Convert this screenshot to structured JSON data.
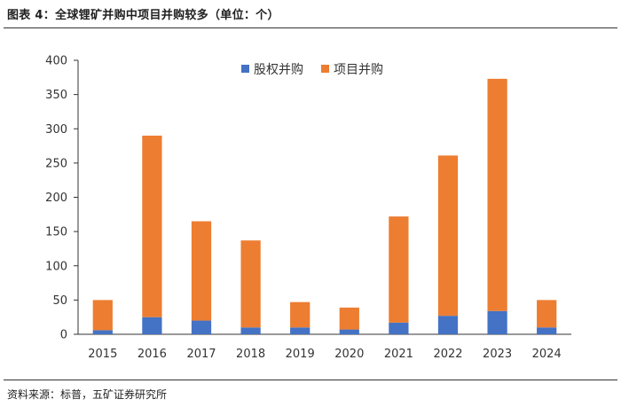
{
  "header": {
    "title": "图表 4：全球锂矿并购中项目并购较多（单位：个）"
  },
  "footer": {
    "source": "资料来源：标普，五矿证券研究所"
  },
  "colors": {
    "equity": "#4472C4",
    "project": "#ED7D31",
    "axis": "#333333"
  },
  "chart_data": {
    "type": "bar",
    "stacked": true,
    "title": "全球锂矿并购中项目并购较多（单位：个）",
    "categories": [
      "2015",
      "2016",
      "2017",
      "2018",
      "2019",
      "2020",
      "2021",
      "2022",
      "2023",
      "2024"
    ],
    "series": [
      {
        "name": "股权并购",
        "values": [
          6,
          25,
          20,
          10,
          10,
          7,
          17,
          27,
          34,
          10
        ]
      },
      {
        "name": "项目并购",
        "values": [
          44,
          265,
          145,
          127,
          37,
          32,
          155,
          234,
          339,
          40
        ]
      }
    ],
    "ylim": [
      0,
      400
    ],
    "yticks": [
      0,
      50,
      100,
      150,
      200,
      250,
      300,
      350,
      400
    ],
    "xlabel": "",
    "ylabel": "",
    "legend": "top-center",
    "grid": false
  }
}
